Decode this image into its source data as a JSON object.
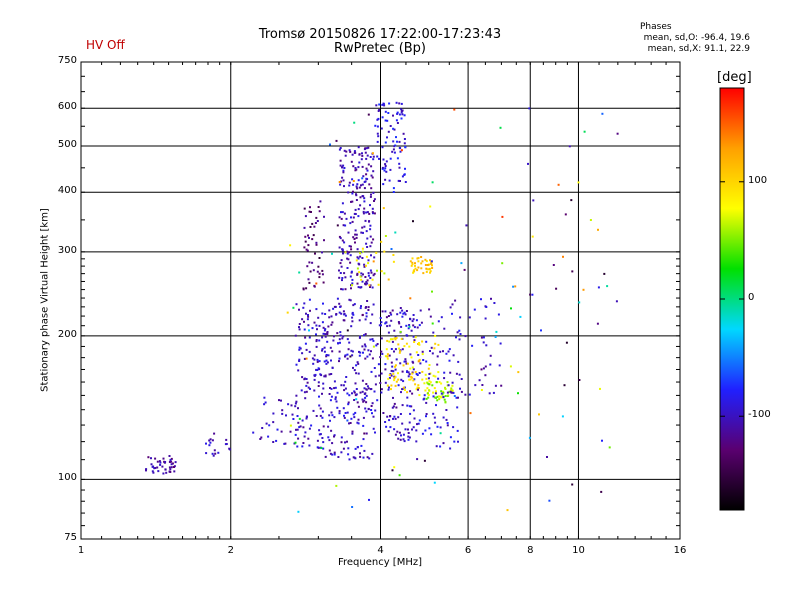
{
  "header": {
    "hv_status": "HV Off",
    "phases_title": "Phases",
    "phases_o": "mean, sd,O: -96.4, 19.6",
    "phases_x": "mean, sd,X:  91.1, 22.9"
  },
  "colorbar": {
    "unit": "[deg]",
    "range": [
      -180,
      180
    ],
    "ticks": [
      {
        "value": 100,
        "label": "100"
      },
      {
        "value": 0,
        "label": "0"
      },
      {
        "value": -100,
        "label": "-100"
      }
    ],
    "colors": [
      "#000000",
      "#5a0070",
      "#2020ff",
      "#00d8ff",
      "#00e000",
      "#ffff00",
      "#ffa000",
      "#ff0000"
    ]
  },
  "chart_data": {
    "type": "scatter",
    "title": "Tromsø 20150826 17:22:00-17:23:43",
    "subtitle": "RwPretec (Bp)",
    "xlabel": "Frequency [MHz]",
    "ylabel": "Stationary phase Virtual Height [km]",
    "xscale": "log",
    "yscale": "log",
    "xlim": [
      1,
      16
    ],
    "ylim": [
      75,
      750
    ],
    "xticks": [
      1,
      2,
      4,
      6,
      8,
      10,
      16
    ],
    "yticks": [
      75,
      100,
      200,
      300,
      400,
      500,
      600,
      750
    ],
    "grid": true,
    "colorbar_label": "[deg]",
    "clusters": [
      {
        "x": [
          1.35,
          1.55
        ],
        "y": [
          102,
          112
        ],
        "phase": -110,
        "n": 45
      },
      {
        "x": [
          1.75,
          2.05
        ],
        "y": [
          112,
          125
        ],
        "phase": -105,
        "n": 18
      },
      {
        "x": [
          2.2,
          2.7
        ],
        "y": [
          118,
          150
        ],
        "phase": -100,
        "n": 30
      },
      {
        "x": [
          2.7,
          3.1
        ],
        "y": [
          115,
          240
        ],
        "phase": -100,
        "n": 140
      },
      {
        "x": [
          2.8,
          3.1
        ],
        "y": [
          250,
          390
        ],
        "phase": -125,
        "n": 50
      },
      {
        "x": [
          3.1,
          3.9
        ],
        "y": [
          110,
          240
        ],
        "phase": -100,
        "n": 250
      },
      {
        "x": [
          3.3,
          3.9
        ],
        "y": [
          250,
          500
        ],
        "phase": -105,
        "n": 230
      },
      {
        "x": [
          3.9,
          4.5
        ],
        "y": [
          400,
          620
        ],
        "phase": -90,
        "n": 90
      },
      {
        "x": [
          3.9,
          4.7
        ],
        "y": [
          120,
          230
        ],
        "phase": -100,
        "n": 150
      },
      {
        "x": [
          4.1,
          5.3
        ],
        "y": [
          150,
          200
        ],
        "phase": 90,
        "n": 90
      },
      {
        "x": [
          4.6,
          5.1
        ],
        "y": [
          270,
          295
        ],
        "phase": 105,
        "n": 40
      },
      {
        "x": [
          4.9,
          5.6
        ],
        "y": [
          145,
          160
        ],
        "phase": 60,
        "n": 45
      },
      {
        "x": [
          4.5,
          5.8
        ],
        "y": [
          115,
          230
        ],
        "phase": -95,
        "n": 100
      },
      {
        "x": [
          5.5,
          7.0
        ],
        "y": [
          150,
          240
        ],
        "phase": -100,
        "n": 45
      },
      {
        "x": [
          3.4,
          4.3
        ],
        "y": [
          250,
          330
        ],
        "phase": 80,
        "n": 25
      },
      {
        "x": [
          2.6,
          12
        ],
        "y": [
          85,
          600
        ],
        "phase": 0,
        "n": 120
      }
    ]
  }
}
